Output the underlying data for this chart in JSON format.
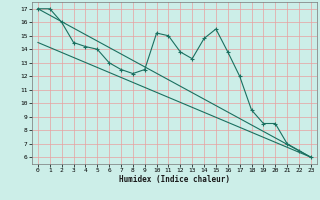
{
  "title": "",
  "xlabel": "Humidex (Indice chaleur)",
  "bg_color": "#cceee8",
  "grid_color": "#e8a0a0",
  "line_color": "#1a7060",
  "xlim": [
    -0.5,
    23.5
  ],
  "ylim": [
    5.5,
    17.5
  ],
  "xticks": [
    0,
    1,
    2,
    3,
    4,
    5,
    6,
    7,
    8,
    9,
    10,
    11,
    12,
    13,
    14,
    15,
    16,
    17,
    18,
    19,
    20,
    21,
    22,
    23
  ],
  "yticks": [
    6,
    7,
    8,
    9,
    10,
    11,
    12,
    13,
    14,
    15,
    16,
    17
  ],
  "jagged_x": [
    0,
    1,
    2,
    3,
    4,
    5,
    6,
    7,
    8,
    9,
    10,
    11,
    12,
    13,
    14,
    15,
    16,
    17,
    18,
    19,
    20,
    21,
    22,
    23
  ],
  "jagged_y": [
    17.0,
    17.0,
    16.0,
    14.5,
    14.2,
    14.0,
    13.0,
    12.5,
    12.2,
    12.5,
    15.2,
    15.0,
    13.8,
    13.3,
    14.8,
    15.5,
    13.8,
    12.0,
    9.5,
    8.5,
    8.5,
    7.0,
    6.5,
    6.0
  ],
  "line1_x": [
    0,
    23
  ],
  "line1_y": [
    17.0,
    6.0
  ],
  "line2_x": [
    0,
    23
  ],
  "line2_y": [
    14.5,
    6.0
  ]
}
